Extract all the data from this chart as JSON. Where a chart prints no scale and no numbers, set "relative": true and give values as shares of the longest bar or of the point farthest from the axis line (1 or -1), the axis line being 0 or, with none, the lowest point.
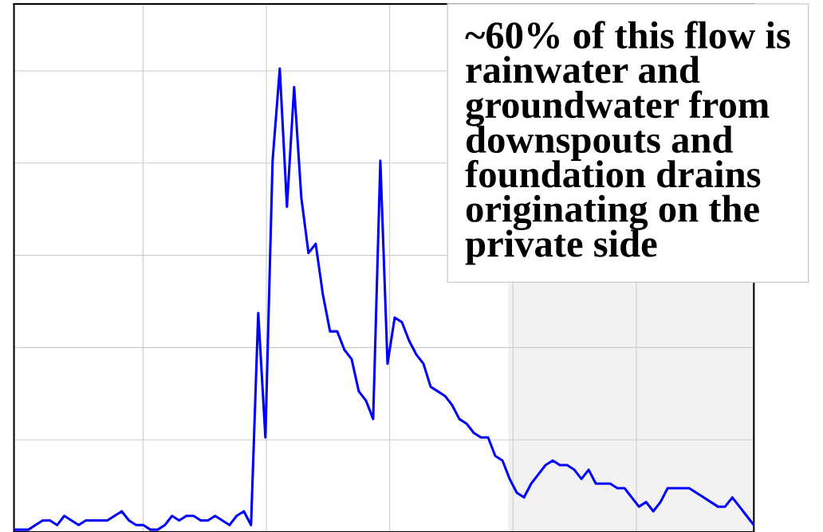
{
  "chart_data": {
    "type": "line",
    "relative": true,
    "grid": true,
    "categories": [
      null,
      null,
      null,
      null,
      null,
      null,
      null,
      null,
      null,
      null,
      null,
      null,
      null,
      null,
      null,
      null,
      null,
      null,
      null,
      null,
      null,
      null,
      null,
      null,
      null,
      null,
      null,
      null,
      null,
      null,
      null,
      null,
      null,
      null,
      null,
      null,
      null,
      null,
      null,
      null,
      null,
      null,
      null,
      null,
      null,
      null,
      null,
      null,
      null,
      null,
      null,
      null,
      null,
      null,
      null,
      null,
      null,
      null,
      null,
      null,
      null,
      null,
      null,
      null,
      null,
      null,
      null,
      null,
      null,
      null,
      null,
      null,
      null,
      null,
      null,
      null,
      null,
      null,
      null,
      null,
      null,
      null,
      null,
      null,
      null,
      null,
      null,
      null,
      null,
      null,
      null,
      null,
      null,
      null,
      null,
      null,
      null,
      null,
      null,
      null,
      null,
      null,
      null,
      null
    ],
    "annotations": [
      "~60% of this flow is rainwater and groundwater from downspouts and foundation drains originating on the private side"
    ],
    "series": [
      {
        "color": "#0000ff",
        "values": [
          0,
          0.0,
          0.0,
          0.01,
          0.02,
          0.02,
          0.01,
          0.03,
          0.02,
          0.01,
          0.02,
          0.02,
          0.02,
          0.02,
          0.03,
          0.04,
          0.02,
          0.01,
          0.01,
          0.0,
          0,
          0.01,
          0.03,
          0.02,
          0.03,
          0.03,
          0.02,
          0.02,
          0.03,
          0.02,
          0.01,
          0.03,
          0.04,
          0.01,
          0.47,
          0.2,
          0.8,
          1.0,
          0.7,
          0.96,
          0.72,
          0.6,
          0.62,
          0.51,
          0.43,
          0.43,
          0.39,
          0.37,
          0.3,
          0.28,
          0.24,
          0.8,
          0.36,
          0.46,
          0.45,
          0.41,
          0.38,
          0.36,
          0.31,
          0.3,
          0.29,
          0.27,
          0.24,
          0.23,
          0.21,
          0.2,
          0.2,
          0.16,
          0.15,
          0.11,
          0.08,
          0.07,
          0.1,
          0.12,
          0.14,
          0.15,
          0.14,
          0.14,
          0.13,
          0.11,
          0.13,
          0.1,
          0.1,
          0.1,
          0.09,
          0.09,
          0.07,
          0.05,
          0.06,
          0.04,
          0.06,
          0.09,
          0.09,
          0.09,
          0.09,
          0.08,
          0.07,
          0.06,
          0.05,
          0.05,
          0.07,
          0.05,
          0.03,
          0.01
        ]
      }
    ]
  }
}
